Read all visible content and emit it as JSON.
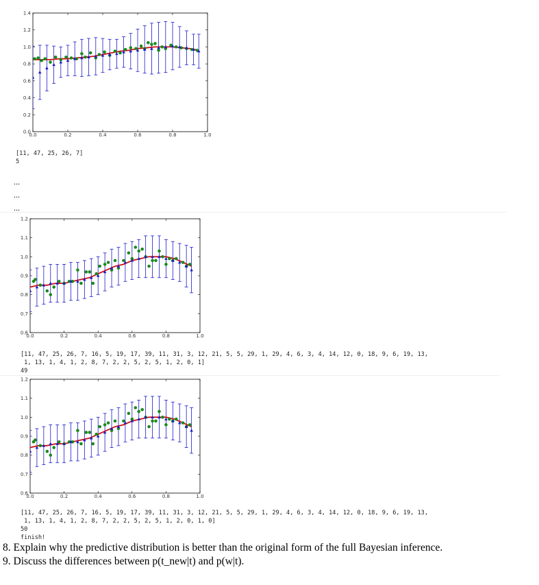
{
  "plots": [
    {
      "id": "plot1",
      "chart_data": {
        "type": "scatter",
        "title": "",
        "xlabel": "",
        "ylabel": "",
        "xlim": [
          0.0,
          1.0
        ],
        "ylim": [
          0.0,
          1.4
        ],
        "xticks": [
          "0.0",
          "0.2",
          "0.4",
          "0.6",
          "0.8",
          "1.0"
        ],
        "yticks": [
          "0.0",
          "0.2",
          "0.4",
          "0.6",
          "0.8",
          "1.0",
          "1.2",
          "1.4"
        ],
        "xtick_values": [
          0,
          0.2,
          0.4,
          0.6,
          0.8,
          1.0
        ],
        "ytick_values": [
          0,
          0.2,
          0.4,
          0.6,
          0.8,
          1.0,
          1.2,
          1.4
        ],
        "series": [
          {
            "name": "observed (green)",
            "color": "#1a8a1a",
            "x": [
              0.01,
              0.03,
              0.05,
              0.07,
              0.1,
              0.13,
              0.16,
              0.19,
              0.22,
              0.25,
              0.28,
              0.3,
              0.33,
              0.36,
              0.38,
              0.41,
              0.44,
              0.47,
              0.5,
              0.53,
              0.56,
              0.59,
              0.62,
              0.64,
              0.66,
              0.68,
              0.7,
              0.72,
              0.74,
              0.76,
              0.79,
              0.82,
              0.85,
              0.88,
              0.91,
              0.94
            ],
            "y": [
              0.86,
              0.87,
              0.84,
              0.86,
              0.82,
              0.88,
              0.85,
              0.88,
              0.87,
              0.86,
              0.92,
              0.88,
              0.93,
              0.87,
              0.91,
              0.94,
              0.9,
              0.95,
              0.93,
              0.97,
              0.99,
              0.98,
              1.01,
              0.98,
              1.05,
              1.03,
              1.04,
              0.96,
              1.0,
              0.98,
              1.02,
              1.0,
              0.99,
              0.98,
              0.97,
              0.96
            ]
          },
          {
            "name": "true (red)",
            "color": "#cc1111",
            "x": [
              0.0,
              0.05,
              0.1,
              0.15,
              0.2,
              0.25,
              0.3,
              0.35,
              0.4,
              0.45,
              0.5,
              0.55,
              0.6,
              0.65,
              0.7,
              0.75,
              0.8,
              0.85,
              0.9,
              0.95
            ],
            "y": [
              0.85,
              0.85,
              0.85,
              0.86,
              0.86,
              0.87,
              0.88,
              0.89,
              0.91,
              0.93,
              0.95,
              0.96,
              0.98,
              0.99,
              1.0,
              1.0,
              1.0,
              0.99,
              0.98,
              0.96
            ]
          },
          {
            "name": "predictive mean (blue)",
            "color": "#1a1acc",
            "x": [
              0.0,
              0.04,
              0.08,
              0.12,
              0.16,
              0.2,
              0.24,
              0.28,
              0.32,
              0.36,
              0.4,
              0.44,
              0.48,
              0.52,
              0.56,
              0.6,
              0.64,
              0.68,
              0.72,
              0.76,
              0.8,
              0.84,
              0.88,
              0.92,
              0.95
            ],
            "y": [
              0.64,
              0.7,
              0.75,
              0.79,
              0.82,
              0.84,
              0.86,
              0.87,
              0.88,
              0.89,
              0.9,
              0.91,
              0.92,
              0.94,
              0.95,
              0.96,
              0.97,
              0.98,
              0.99,
              1.0,
              1.01,
              1.0,
              0.99,
              0.97,
              0.95
            ],
            "err": [
              0.37,
              0.32,
              0.27,
              0.22,
              0.18,
              0.18,
              0.2,
              0.22,
              0.22,
              0.22,
              0.2,
              0.18,
              0.17,
              0.18,
              0.21,
              0.25,
              0.28,
              0.3,
              0.3,
              0.3,
              0.28,
              0.24,
              0.2,
              0.18,
              0.2
            ]
          }
        ]
      }
    },
    {
      "id": "plot2",
      "chart_data": {
        "type": "scatter",
        "title": "",
        "xlabel": "",
        "ylabel": "",
        "xlim": [
          0.0,
          1.0
        ],
        "ylim": [
          0.6,
          1.2
        ],
        "xticks": [
          "0.0",
          "0.2",
          "0.4",
          "0.6",
          "0.8",
          "1.0"
        ],
        "yticks": [
          "0.6",
          "0.7",
          "0.8",
          "0.9",
          "1.0",
          "1.1",
          "1.2"
        ],
        "xtick_values": [
          0,
          0.2,
          0.4,
          0.6,
          0.8,
          1.0
        ],
        "ytick_values": [
          0.6,
          0.7,
          0.8,
          0.9,
          1.0,
          1.1,
          1.2
        ],
        "series": [
          {
            "name": "observed (green)",
            "color": "#1a8a1a",
            "x": [
              0.02,
              0.03,
              0.06,
              0.1,
              0.12,
              0.14,
              0.17,
              0.2,
              0.23,
              0.25,
              0.28,
              0.3,
              0.33,
              0.35,
              0.37,
              0.39,
              0.41,
              0.44,
              0.46,
              0.48,
              0.5,
              0.52,
              0.55,
              0.58,
              0.6,
              0.62,
              0.64,
              0.66,
              0.68,
              0.7,
              0.72,
              0.74,
              0.76,
              0.78,
              0.8,
              0.82,
              0.84,
              0.86,
              0.9,
              0.92,
              0.94
            ],
            "y": [
              0.87,
              0.88,
              0.85,
              0.82,
              0.8,
              0.84,
              0.87,
              0.86,
              0.87,
              0.87,
              0.93,
              0.86,
              0.92,
              0.92,
              0.86,
              0.91,
              0.95,
              0.96,
              0.97,
              0.93,
              0.98,
              0.94,
              0.98,
              1.02,
              0.99,
              1.05,
              1.03,
              1.04,
              1.0,
              0.95,
              0.98,
              0.98,
              1.03,
              1.0,
              0.96,
              0.99,
              0.98,
              0.99,
              0.97,
              0.95,
              0.96
            ],
            "label_mismatch": ""
          },
          {
            "name": "true (red)",
            "color": "#cc1111",
            "x": [
              0.0,
              0.05,
              0.1,
              0.15,
              0.2,
              0.25,
              0.3,
              0.35,
              0.4,
              0.45,
              0.5,
              0.55,
              0.6,
              0.65,
              0.7,
              0.75,
              0.8,
              0.85,
              0.9,
              0.95
            ],
            "y": [
              0.84,
              0.85,
              0.85,
              0.86,
              0.86,
              0.87,
              0.88,
              0.89,
              0.91,
              0.93,
              0.95,
              0.96,
              0.98,
              0.99,
              1.0,
              1.0,
              1.0,
              0.99,
              0.97,
              0.95
            ]
          },
          {
            "name": "predictive mean (blue)",
            "color": "#1a1acc",
            "x": [
              0.0,
              0.04,
              0.08,
              0.12,
              0.16,
              0.2,
              0.24,
              0.28,
              0.32,
              0.36,
              0.4,
              0.44,
              0.48,
              0.52,
              0.56,
              0.6,
              0.64,
              0.68,
              0.72,
              0.76,
              0.8,
              0.84,
              0.88,
              0.92,
              0.95
            ],
            "y": [
              0.82,
              0.84,
              0.85,
              0.86,
              0.86,
              0.86,
              0.87,
              0.87,
              0.88,
              0.89,
              0.9,
              0.92,
              0.94,
              0.95,
              0.97,
              0.98,
              0.99,
              1.0,
              1.0,
              1.0,
              0.99,
              0.98,
              0.97,
              0.95,
              0.93
            ],
            "err": [
              0.11,
              0.1,
              0.1,
              0.1,
              0.1,
              0.1,
              0.1,
              0.1,
              0.1,
              0.1,
              0.1,
              0.1,
              0.1,
              0.1,
              0.1,
              0.1,
              0.1,
              0.11,
              0.11,
              0.11,
              0.1,
              0.1,
              0.1,
              0.11,
              0.12
            ]
          }
        ]
      }
    },
    {
      "id": "plot3",
      "chart_data": {
        "type": "scatter",
        "title": "",
        "xlabel": "",
        "ylabel": "",
        "xlim": [
          0.0,
          1.0
        ],
        "ylim": [
          0.6,
          1.2
        ],
        "xticks": [
          "0.0",
          "0.2",
          "0.4",
          "0.6",
          "0.8",
          "1.0"
        ],
        "yticks": [
          "0.6",
          "0.7",
          "0.8",
          "0.9",
          "1.0",
          "1.1",
          "1.2"
        ],
        "xtick_values": [
          0,
          0.2,
          0.4,
          0.6,
          0.8,
          1.0
        ],
        "ytick_values": [
          0.6,
          0.7,
          0.8,
          0.9,
          1.0,
          1.1,
          1.2
        ],
        "series": [
          {
            "name": "observed (green)",
            "color": "#1a8a1a",
            "x": [
              0.02,
              0.03,
              0.06,
              0.1,
              0.12,
              0.14,
              0.17,
              0.2,
              0.23,
              0.25,
              0.28,
              0.3,
              0.33,
              0.35,
              0.37,
              0.39,
              0.41,
              0.44,
              0.46,
              0.48,
              0.5,
              0.52,
              0.55,
              0.58,
              0.6,
              0.62,
              0.64,
              0.66,
              0.68,
              0.7,
              0.72,
              0.74,
              0.76,
              0.78,
              0.8,
              0.82,
              0.84,
              0.86,
              0.9,
              0.92,
              0.94
            ],
            "y": [
              0.87,
              0.88,
              0.85,
              0.82,
              0.8,
              0.84,
              0.87,
              0.86,
              0.87,
              0.87,
              0.93,
              0.86,
              0.92,
              0.92,
              0.86,
              0.91,
              0.95,
              0.96,
              0.97,
              0.93,
              0.98,
              0.94,
              0.98,
              1.02,
              0.99,
              1.05,
              1.03,
              1.04,
              1.0,
              0.95,
              0.98,
              0.98,
              1.03,
              1.0,
              0.96,
              0.99,
              0.98,
              0.99,
              0.97,
              0.95,
              0.96
            ]
          },
          {
            "name": "true (red)",
            "color": "#cc1111",
            "x": [
              0.0,
              0.05,
              0.1,
              0.15,
              0.2,
              0.25,
              0.3,
              0.35,
              0.4,
              0.45,
              0.5,
              0.55,
              0.6,
              0.65,
              0.7,
              0.75,
              0.8,
              0.85,
              0.9,
              0.95
            ],
            "y": [
              0.84,
              0.85,
              0.85,
              0.86,
              0.86,
              0.87,
              0.88,
              0.89,
              0.91,
              0.93,
              0.95,
              0.96,
              0.98,
              0.99,
              1.0,
              1.0,
              1.0,
              0.99,
              0.97,
              0.95
            ]
          },
          {
            "name": "predictive mean (blue)",
            "color": "#1a1acc",
            "x": [
              0.0,
              0.04,
              0.08,
              0.12,
              0.16,
              0.2,
              0.24,
              0.28,
              0.32,
              0.36,
              0.4,
              0.44,
              0.48,
              0.52,
              0.56,
              0.6,
              0.64,
              0.68,
              0.72,
              0.76,
              0.8,
              0.84,
              0.88,
              0.92,
              0.95
            ],
            "y": [
              0.82,
              0.84,
              0.85,
              0.86,
              0.86,
              0.86,
              0.87,
              0.87,
              0.88,
              0.89,
              0.9,
              0.92,
              0.94,
              0.95,
              0.97,
              0.98,
              0.99,
              1.0,
              1.0,
              1.0,
              0.99,
              0.98,
              0.97,
              0.95,
              0.93
            ],
            "err": [
              0.11,
              0.1,
              0.1,
              0.1,
              0.1,
              0.1,
              0.1,
              0.1,
              0.1,
              0.1,
              0.1,
              0.1,
              0.1,
              0.1,
              0.1,
              0.1,
              0.1,
              0.11,
              0.11,
              0.11,
              0.1,
              0.1,
              0.1,
              0.11,
              0.12
            ]
          }
        ]
      }
    }
  ],
  "output1": {
    "list": "[11, 47, 25, 26, 7]",
    "count": "5"
  },
  "ellipsis": [
    "...",
    "...",
    "..."
  ],
  "output2": {
    "list_line1": "[11, 47, 25, 26, 7, 16, 5, 19, 17, 39, 11, 31, 3, 12, 21, 5, 5, 29, 1, 29, 4, 6, 3, 4, 14, 12, 0, 18, 9, 6, 19, 13,",
    "list_line2": " 1, 13, 1, 4, 1, 2, 8, 7, 2, 2, 5, 2, 5, 1, 2, 0, 1]",
    "count": "49"
  },
  "output3": {
    "list_line1": "[11, 47, 25, 26, 7, 16, 5, 19, 17, 39, 11, 31, 3, 12, 21, 5, 5, 29, 1, 29, 4, 6, 3, 4, 14, 12, 0, 18, 9, 6, 19, 13,",
    "list_line2": " 1, 13, 1, 4, 1, 2, 8, 7, 2, 2, 5, 2, 5, 1, 2, 0, 1, 0]",
    "count": "50",
    "finish": "finish!"
  },
  "questions": [
    "8. Explain why the predictive distribution is better than the original form of the full Bayesian inference.",
    "9. Discuss the differences between p(t_new|t) and p(w|t)."
  ]
}
